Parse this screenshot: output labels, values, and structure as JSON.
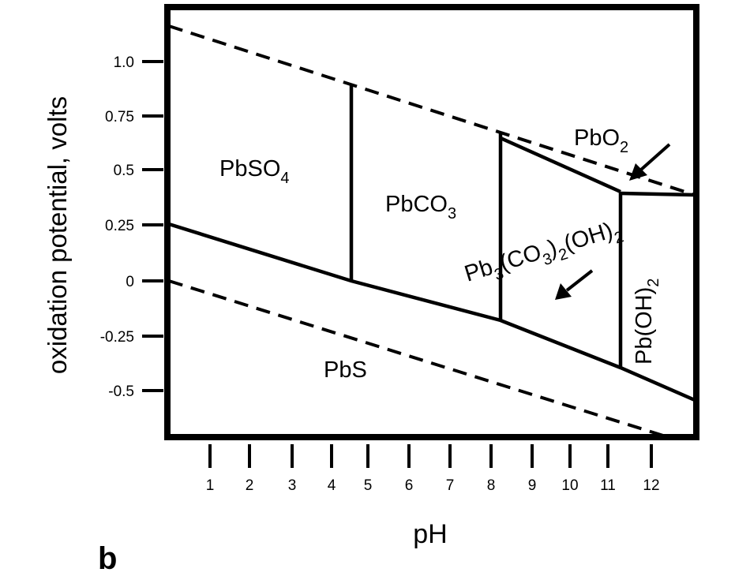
{
  "figure": {
    "panel_label": "b",
    "axes": {
      "x_label": "pH",
      "y_label": "oxidation potential, volts",
      "x_ticks": [
        "1",
        "2",
        "3",
        "4",
        "5",
        "6",
        "7",
        "8",
        "9",
        "10",
        "11",
        "12"
      ],
      "y_ticks": [
        {
          "label": "1.0",
          "value": 1.0
        },
        {
          "label": "0.75",
          "value": 0.75
        },
        {
          "label": "0.5",
          "value": 0.5
        },
        {
          "label": "0.25",
          "value": 0.25
        },
        {
          "label": "0",
          "value": 0
        },
        {
          "label": "-0.25",
          "value": -0.25
        },
        {
          "label": "-0.5",
          "value": -0.5
        }
      ]
    },
    "regions": {
      "pbso4": {
        "base": "PbSO",
        "sub": "4"
      },
      "pbco3": {
        "base": "PbCO",
        "sub": "3"
      },
      "pbo2": {
        "base": "PbO",
        "sub": "2"
      },
      "pb3co32oh2": {
        "p1": "Pb",
        "s1": "3",
        "p2": "(CO",
        "s2": "3",
        "p3": ")",
        "s3": "2",
        "p4": "(OH)",
        "s4": "2"
      },
      "pboh2": {
        "p1": "Pb(OH)",
        "s1": "2"
      },
      "pbs": {
        "text": "PbS"
      }
    },
    "colors": {
      "line": "#000000",
      "background": "#ffffff"
    }
  }
}
